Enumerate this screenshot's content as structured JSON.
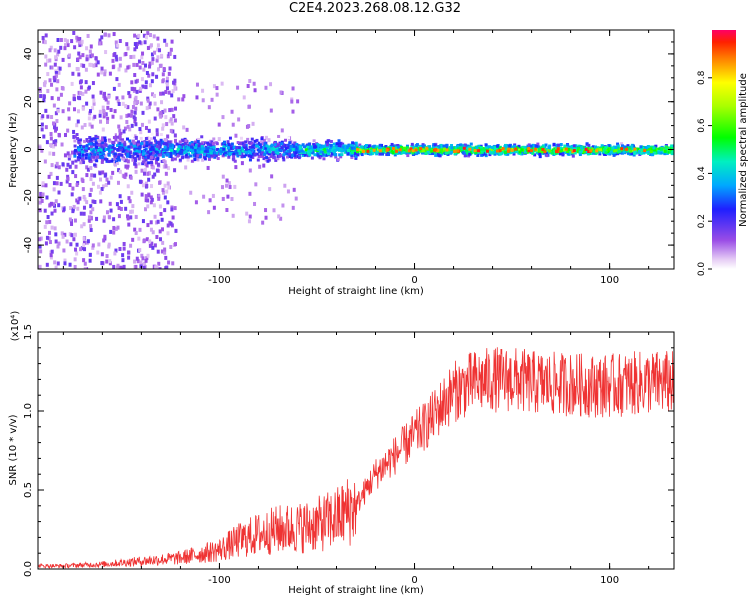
{
  "page_title": "C2E4.2023.268.08.12.G32",
  "chart_data": [
    {
      "type": "heatmap",
      "title": "C2E4.2023.268.08.12.G32",
      "xlabel": "Height of straight line (km)",
      "ylabel": "Frequency (Hz)",
      "xlim": [
        -193,
        133
      ],
      "ylim": [
        -50,
        50
      ],
      "x_ticks": [
        -100,
        0,
        100
      ],
      "y_ticks": [
        -40,
        -20,
        0,
        20,
        40
      ],
      "colorbar": {
        "label": "Normalized spectral amplitude",
        "range": [
          0,
          1
        ],
        "ticks": [
          "0.0",
          "0.2",
          "0.4",
          "0.6",
          "0.8"
        ]
      },
      "description_points": {
        "x_center_freq": 0,
        "band_segments": [
          {
            "x": [
              -175,
              -130
            ],
            "freq_spread": 8,
            "amplitude": 0.3
          },
          {
            "x": [
              -130,
              -60
            ],
            "freq_spread": 6,
            "amplitude": 0.35
          },
          {
            "x": [
              -60,
              -30
            ],
            "freq_spread": 5,
            "amplitude": 0.45
          },
          {
            "x": [
              -30,
              133
            ],
            "freq_spread": 3,
            "amplitude": 0.6
          }
        ]
      }
    },
    {
      "type": "line",
      "xlabel": "Height of straight line (km)",
      "ylabel": "SNR (10 * v/v)",
      "multiplier_label": "(x10⁴)",
      "xlim": [
        -193,
        133
      ],
      "ylim": [
        0,
        1.5
      ],
      "x_ticks": [
        -100,
        0,
        100
      ],
      "y_ticks": [
        "0.0",
        "0.5",
        "1.0",
        "1.5"
      ],
      "color": "#ef3333",
      "series": [
        {
          "x": [
            -193,
            -180,
            -160,
            -140,
            -120,
            -100,
            -90,
            -80,
            -70,
            -60,
            -50,
            -40,
            -30,
            -25,
            -20,
            -15,
            -10,
            -5,
            0,
            5,
            10,
            15,
            20,
            25,
            30,
            40,
            50,
            60,
            70,
            80,
            90,
            100,
            110,
            120,
            133
          ],
          "values": [
            0.02,
            0.02,
            0.03,
            0.05,
            0.07,
            0.12,
            0.18,
            0.22,
            0.25,
            0.26,
            0.28,
            0.32,
            0.4,
            0.5,
            0.6,
            0.66,
            0.72,
            0.78,
            0.85,
            0.9,
            0.97,
            1.05,
            1.12,
            1.15,
            1.18,
            1.2,
            1.2,
            1.18,
            1.17,
            1.17,
            1.16,
            1.16,
            1.17,
            1.18,
            1.18
          ]
        }
      ]
    }
  ]
}
